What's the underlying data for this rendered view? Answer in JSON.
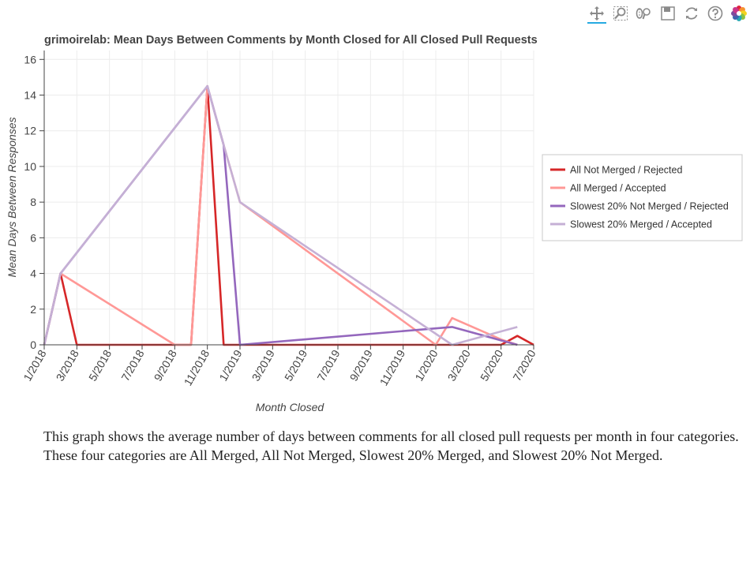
{
  "toolbar": {
    "tools": [
      {
        "name": "pan-tool",
        "icon": "pan-icon",
        "active": true
      },
      {
        "name": "box-zoom-tool",
        "icon": "box-zoom-icon",
        "active": false
      },
      {
        "name": "wheel-zoom-tool",
        "icon": "wheel-zoom-icon",
        "active": false
      },
      {
        "name": "save-tool",
        "icon": "save-icon",
        "active": false
      },
      {
        "name": "reset-tool",
        "icon": "reset-icon",
        "active": false
      },
      {
        "name": "help-tool",
        "icon": "help-icon",
        "active": false
      },
      {
        "name": "bokeh-logo",
        "icon": "bokeh-logo-icon",
        "active": false
      }
    ]
  },
  "chart_data": {
    "type": "line",
    "title": "grimoirelab: Mean Days Between Comments by Month Closed for All Closed Pull Requests",
    "xlabel": "Month Closed",
    "ylabel": "Mean Days Between Responses",
    "xlim": [
      "2018-01",
      "2020-07"
    ],
    "ylim": [
      0,
      16.5
    ],
    "x_ticks": [
      "1/2018",
      "3/2018",
      "5/2018",
      "7/2018",
      "9/2018",
      "11/2018",
      "1/2019",
      "3/2019",
      "5/2019",
      "7/2019",
      "9/2019",
      "11/2019",
      "1/2020",
      "3/2020",
      "5/2020",
      "7/2020"
    ],
    "y_ticks": [
      0,
      2,
      4,
      6,
      8,
      10,
      12,
      14,
      16
    ],
    "grid": true,
    "legend_position": "right",
    "series": [
      {
        "name": "All Not Merged / Rejected",
        "color": "#d62728",
        "x": [
          "2018-01",
          "2018-02",
          "2018-03",
          "2018-10",
          "2018-11",
          "2018-12",
          "2019-01",
          "2019-02",
          "2019-03",
          "2019-04",
          "2019-05",
          "2019-06",
          "2019-07",
          "2019-08",
          "2019-09",
          "2019-10",
          "2019-11",
          "2019-12",
          "2020-01",
          "2020-02",
          "2020-03",
          "2020-04",
          "2020-05",
          "2020-06",
          "2020-07"
        ],
        "y": [
          0,
          4,
          0,
          0,
          14.5,
          0,
          0,
          0,
          0,
          0,
          0,
          0,
          0,
          0,
          0,
          0,
          0,
          0,
          0,
          0,
          0,
          0,
          0,
          0.5,
          0
        ]
      },
      {
        "name": "All Merged / Accepted",
        "color": "#ff9896",
        "x": [
          "2018-01",
          "2018-02",
          "2018-09",
          "2018-10",
          "2018-11",
          "2018-12",
          "2019-01",
          "2020-01",
          "2020-02",
          "2020-05",
          "2020-06"
        ],
        "y": [
          0,
          4,
          0,
          0,
          14.5,
          11.2,
          8,
          0,
          1.5,
          0.3,
          0
        ]
      },
      {
        "name": "Slowest 20% Not Merged / Rejected",
        "color": "#9467bd",
        "x": [
          "2018-01",
          "2018-02",
          "2018-11",
          "2018-12",
          "2019-01",
          "2020-02",
          "2020-06"
        ],
        "y": [
          0,
          4,
          14.5,
          11.2,
          0,
          1.0,
          0
        ]
      },
      {
        "name": "Slowest 20% Merged / Accepted",
        "color": "#c5b0d5",
        "x": [
          "2018-01",
          "2018-02",
          "2018-11",
          "2018-12",
          "2019-01",
          "2020-02",
          "2020-06"
        ],
        "y": [
          0,
          4,
          14.5,
          11.2,
          8,
          0,
          1.0
        ]
      }
    ]
  },
  "description": "This graph shows the average number of days between comments for all closed pull requests per month in four categories. These four categories are All Merged, All Not Merged, Slowest 20% Merged, and Slowest 20% Not Merged."
}
